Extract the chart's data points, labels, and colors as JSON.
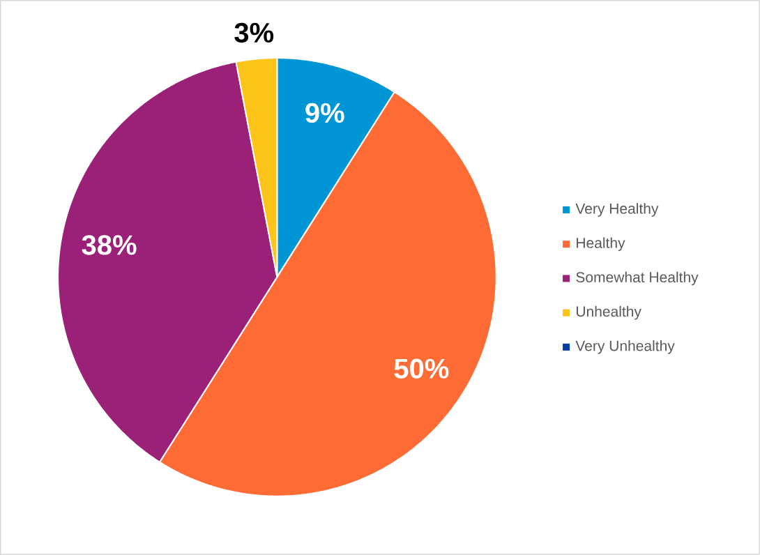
{
  "chart_data": {
    "type": "pie",
    "categories": [
      "Very Healthy",
      "Healthy",
      "Somewhat Healthy",
      "Unhealthy",
      "Very Unhealthy"
    ],
    "values": [
      9,
      50,
      38,
      3,
      0
    ],
    "colors": [
      "#0096d6",
      "#ff6b35",
      "#9b2178",
      "#fcc419",
      "#003da5"
    ],
    "value_labels": [
      "9%",
      "50%",
      "38%",
      "3%",
      null
    ],
    "legend": "right"
  }
}
